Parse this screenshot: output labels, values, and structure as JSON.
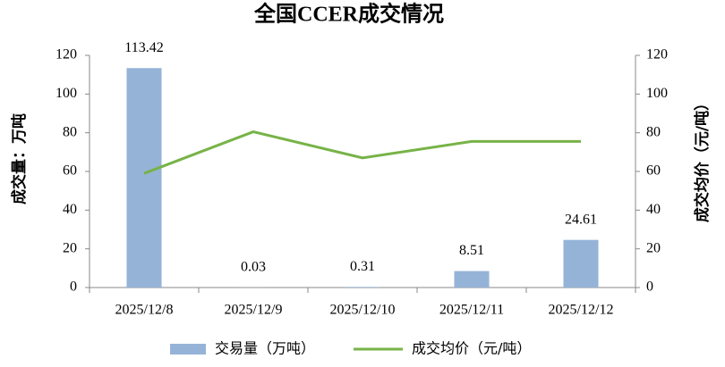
{
  "chart_data": {
    "type": "bar+line",
    "title": "全国CCER成交情况",
    "y_label": "成交量：万吨",
    "y2_label": "成交均价（元/吨）",
    "categories": [
      "2025/12/8",
      "2025/12/9",
      "2025/12/10",
      "2025/12/11",
      "2025/12/12"
    ],
    "series": [
      {
        "name": "交易量（万吨）",
        "type": "bar",
        "color": "#95b3d7",
        "values": [
          113.42,
          0.03,
          0.31,
          8.51,
          24.61
        ]
      },
      {
        "name": "成交均价（元/吨）",
        "type": "line",
        "axis": "y2",
        "color": "#77b347",
        "values": [
          59,
          80.5,
          67,
          75.5,
          75.5
        ]
      }
    ],
    "ylim": [
      0,
      120
    ],
    "yticks": [
      0,
      20,
      40,
      60,
      80,
      100,
      120
    ],
    "y2lim": [
      0,
      120
    ],
    "y2ticks": [
      0,
      20,
      40,
      60,
      80,
      100,
      120
    ],
    "legend": "bottom"
  }
}
